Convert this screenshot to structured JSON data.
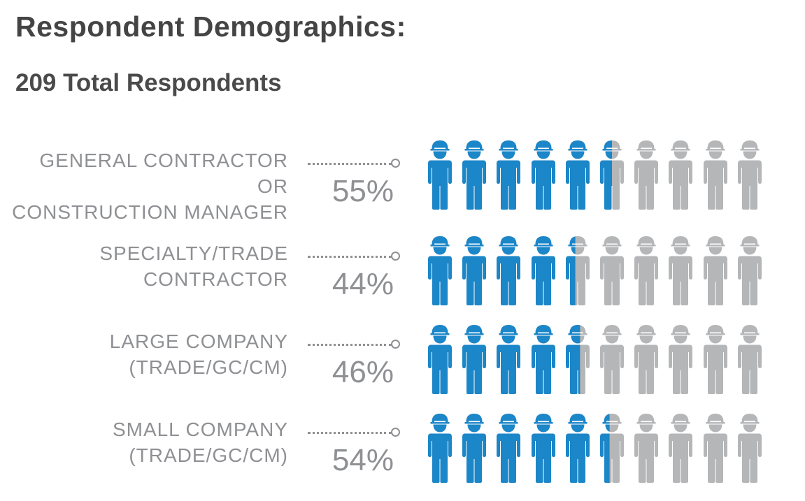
{
  "header": {
    "title": "Respondent Demographics:",
    "subtitle": "209 Total Respondents"
  },
  "colors": {
    "filled": "#1b86c8",
    "empty": "#b5b6b8",
    "label": "#8f9093"
  },
  "icon": "construction-worker-icon",
  "chart_data": {
    "type": "pictograph",
    "icons_per_row": 10,
    "rows": [
      {
        "label_lines": [
          "GENERAL CONTRACTOR OR",
          "CONSTRUCTION MANAGER"
        ],
        "value": 55,
        "value_label": "55%"
      },
      {
        "label_lines": [
          "SPECIALTY/TRADE",
          "CONTRACTOR"
        ],
        "value": 44,
        "value_label": "44%"
      },
      {
        "label_lines": [
          "LARGE COMPANY",
          "(TRADE/GC/CM)"
        ],
        "value": 46,
        "value_label": "46%"
      },
      {
        "label_lines": [
          "SMALL COMPANY",
          "(TRADE/GC/CM)"
        ],
        "value": 54,
        "value_label": "54%"
      }
    ]
  }
}
